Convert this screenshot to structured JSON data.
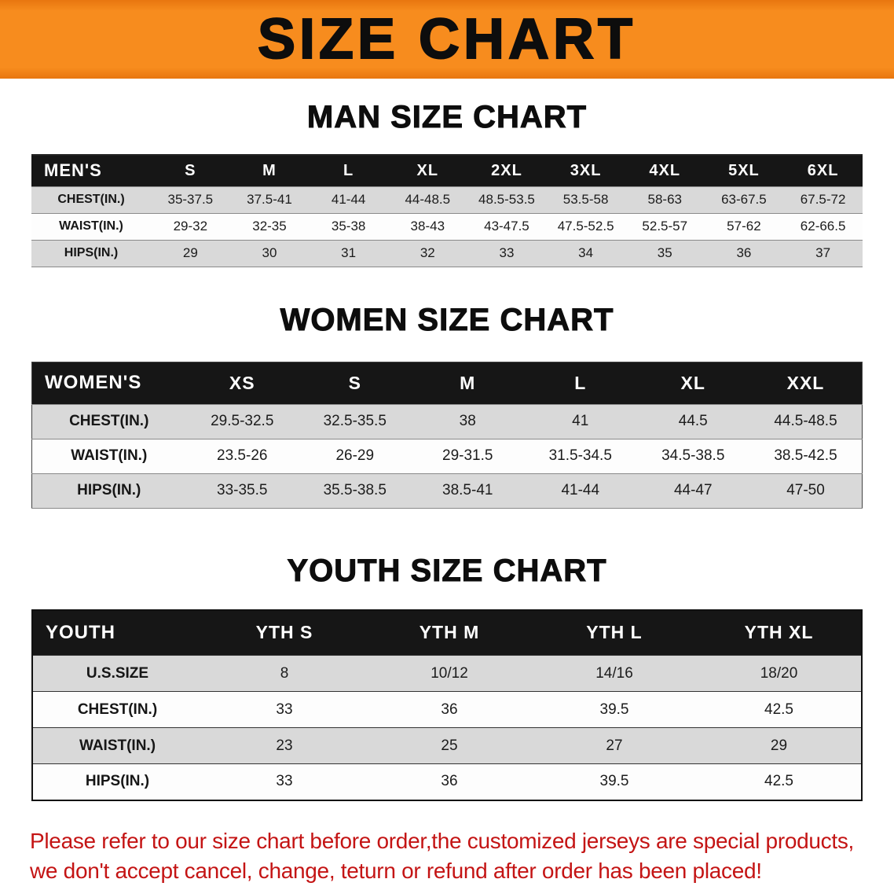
{
  "banner": {
    "title": "SIZE CHART"
  },
  "sections": {
    "men": {
      "heading": "MAN SIZE CHART",
      "header": [
        "MEN'S",
        "S",
        "M",
        "L",
        "XL",
        "2XL",
        "3XL",
        "4XL",
        "5XL",
        "6XL"
      ],
      "rows": [
        [
          "CHEST(IN.)",
          "35-37.5",
          "37.5-41",
          "41-44",
          "44-48.5",
          "48.5-53.5",
          "53.5-58",
          "58-63",
          "63-67.5",
          "67.5-72"
        ],
        [
          "WAIST(IN.)",
          "29-32",
          "32-35",
          "35-38",
          "38-43",
          "43-47.5",
          "47.5-52.5",
          "52.5-57",
          "57-62",
          "62-66.5"
        ],
        [
          "HIPS(IN.)",
          "29",
          "30",
          "31",
          "32",
          "33",
          "34",
          "35",
          "36",
          "37"
        ]
      ]
    },
    "women": {
      "heading": "WOMEN SIZE CHART",
      "header": [
        "WOMEN'S",
        "XS",
        "S",
        "M",
        "L",
        "XL",
        "XXL"
      ],
      "rows": [
        [
          "CHEST(IN.)",
          "29.5-32.5",
          "32.5-35.5",
          "38",
          "41",
          "44.5",
          "44.5-48.5"
        ],
        [
          "WAIST(IN.)",
          "23.5-26",
          "26-29",
          "29-31.5",
          "31.5-34.5",
          "34.5-38.5",
          "38.5-42.5"
        ],
        [
          "HIPS(IN.)",
          "33-35.5",
          "35.5-38.5",
          "38.5-41",
          "41-44",
          "44-47",
          "47-50"
        ]
      ]
    },
    "youth": {
      "heading": "YOUTH SIZE CHART",
      "header": [
        "YOUTH",
        "YTH S",
        "YTH M",
        "YTH L",
        "YTH XL"
      ],
      "rows": [
        [
          "U.S.SIZE",
          "8",
          "10/12",
          "14/16",
          "18/20"
        ],
        [
          "CHEST(IN.)",
          "33",
          "36",
          "39.5",
          "42.5"
        ],
        [
          "WAIST(IN.)",
          "23",
          "25",
          "27",
          "29"
        ],
        [
          "HIPS(IN.)",
          "33",
          "36",
          "39.5",
          "42.5"
        ]
      ]
    }
  },
  "footer": {
    "line1": "Please refer to our size chart before order,the customized jerseys are special products,",
    "line2": "we don't accept cancel, change, teturn or refund after order has been placed!"
  },
  "colors": {
    "accent_orange": "#f78c1e",
    "table_header_black": "#161616",
    "row_gray": "#d9d9d9",
    "notice_red": "#c41414"
  }
}
